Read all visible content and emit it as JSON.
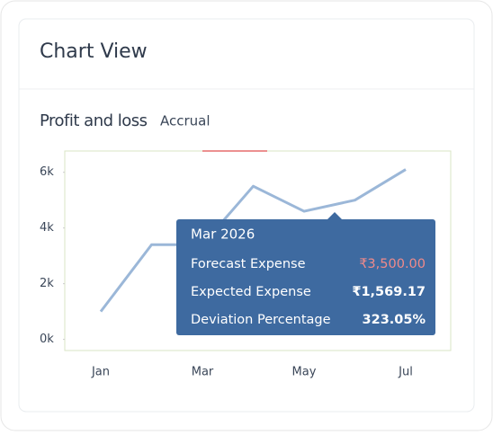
{
  "card": {
    "title": "Chart View"
  },
  "chart_data": {
    "type": "line",
    "title": "Profit and loss",
    "subtitle": "Accrual",
    "categories": [
      "Jan",
      null,
      "Mar",
      null,
      "May",
      null,
      "Jul"
    ],
    "series": [
      {
        "name": "Profit and loss",
        "color": "#9bb7d8",
        "values": [
          1000,
          3400,
          3400,
          5500,
          4600,
          5000,
          6100
        ]
      }
    ],
    "ylim": [
      -400,
      6700
    ],
    "yticks": [
      {
        "value": 0,
        "label": "0k"
      },
      {
        "value": 2000,
        "label": "2k"
      },
      {
        "value": 4000,
        "label": "4k"
      },
      {
        "value": 6000,
        "label": "6k"
      }
    ],
    "tooltip": {
      "title": "Mar 2026",
      "rows": [
        [
          "Forecast Expense",
          "₹3,500.00"
        ],
        [
          "Expected Expense",
          "₹1,569.17"
        ],
        [
          "Deviation Percentage",
          "323.05%"
        ]
      ]
    }
  }
}
